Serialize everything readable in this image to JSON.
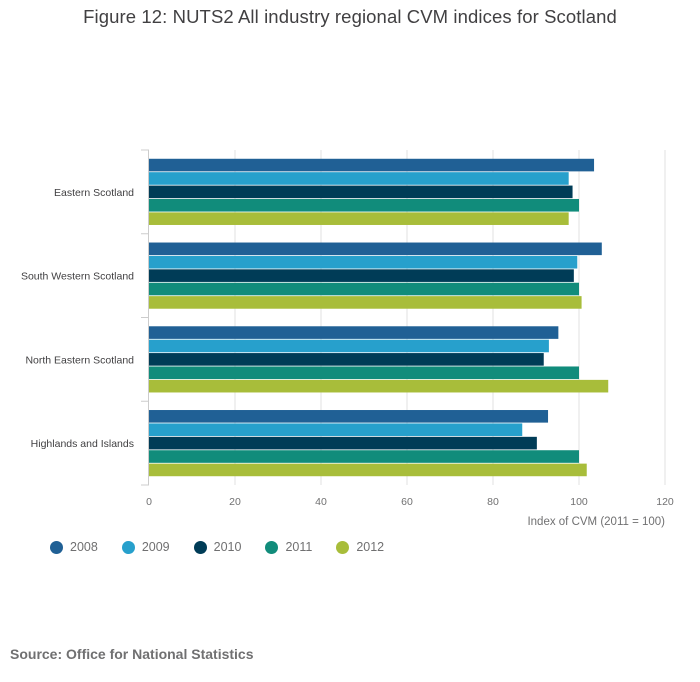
{
  "title": "Figure 12: NUTS2 All industry regional CVM indices for Scotland",
  "source": "Source: Office for National Statistics",
  "colors": {
    "2008": "#206095",
    "2009": "#27a0cc",
    "2010": "#003c57",
    "2011": "#118c7b",
    "2012": "#a8bd3a",
    "grid": "#e0e0e0",
    "axis": "#cccccc",
    "tick_text": "#707071",
    "label_text": "#414042"
  },
  "legend": [
    {
      "label": "2008",
      "color": "#206095"
    },
    {
      "label": "2009",
      "color": "#27a0cc"
    },
    {
      "label": "2010",
      "color": "#003c57"
    },
    {
      "label": "2011",
      "color": "#118c7b"
    },
    {
      "label": "2012",
      "color": "#a8bd3a"
    }
  ],
  "chart_data": {
    "type": "bar",
    "orientation": "horizontal",
    "title": "Figure 12: NUTS2 All industry regional CVM indices for Scotland",
    "xlabel": "Index of CVM (2011 = 100)",
    "ylabel": "",
    "xlim": [
      0,
      120
    ],
    "xticks": [
      0,
      20,
      40,
      60,
      80,
      100,
      120
    ],
    "grid": true,
    "legend_position": "bottom-left",
    "categories": [
      "Eastern Scotland",
      "South Western Scotland",
      "North Eastern Scotland",
      "Highlands and Islands"
    ],
    "series": [
      {
        "name": "2008",
        "values": [
          103.5,
          105.3,
          95.2,
          92.8
        ]
      },
      {
        "name": "2009",
        "values": [
          97.6,
          99.6,
          93.0,
          86.8
        ]
      },
      {
        "name": "2010",
        "values": [
          98.5,
          98.8,
          91.8,
          90.2
        ]
      },
      {
        "name": "2011",
        "values": [
          100,
          100,
          100,
          100
        ]
      },
      {
        "name": "2012",
        "values": [
          97.6,
          100.6,
          106.8,
          101.8
        ]
      }
    ]
  }
}
